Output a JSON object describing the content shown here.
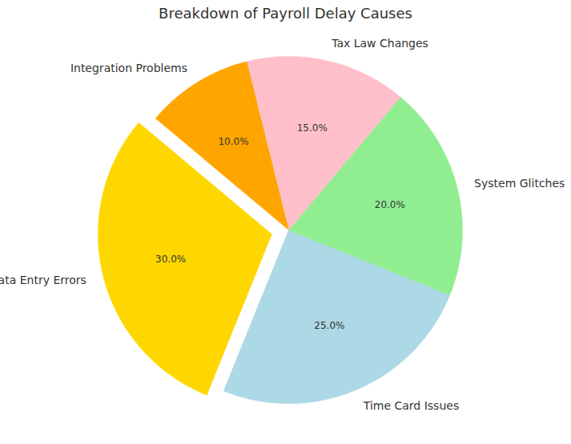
{
  "chart_data": {
    "type": "pie",
    "title": "Breakdown of Payroll Delay Causes",
    "categories": [
      "Data Entry Errors",
      "Time Card Issues",
      "System Glitches",
      "Tax Law Changes",
      "Integration Problems"
    ],
    "values": [
      30,
      25,
      20,
      15,
      10
    ],
    "value_labels": [
      "30.0%",
      "25.0%",
      "20.0%",
      "15.0%",
      "10.0%"
    ],
    "colors": [
      "#FFD700",
      "#ADD8E6",
      "#90EE90",
      "#FFC0CB",
      "#FFA500"
    ],
    "data_labels": true
  }
}
